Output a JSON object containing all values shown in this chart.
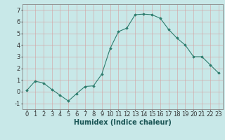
{
  "x": [
    0,
    1,
    2,
    3,
    4,
    5,
    6,
    7,
    8,
    9,
    10,
    11,
    12,
    13,
    14,
    15,
    16,
    17,
    18,
    19,
    20,
    21,
    22,
    23
  ],
  "y": [
    0.1,
    0.9,
    0.75,
    0.2,
    -0.3,
    -0.8,
    -0.15,
    0.45,
    0.5,
    1.5,
    3.7,
    5.15,
    5.45,
    6.6,
    6.65,
    6.6,
    6.3,
    5.35,
    4.6,
    4.0,
    3.0,
    3.0,
    2.3,
    1.6
  ],
  "xlabel": "Humidex (Indice chaleur)",
  "line_color": "#2e7d6e",
  "marker": "D",
  "marker_size": 1.8,
  "bg_color": "#c8e8e8",
  "grid_color": "#b0c8c8",
  "ylim": [
    -1.5,
    7.5
  ],
  "xlim": [
    -0.5,
    23.5
  ],
  "yticks": [
    -1,
    0,
    1,
    2,
    3,
    4,
    5,
    6,
    7
  ],
  "xticks": [
    0,
    1,
    2,
    3,
    4,
    5,
    6,
    7,
    8,
    9,
    10,
    11,
    12,
    13,
    14,
    15,
    16,
    17,
    18,
    19,
    20,
    21,
    22,
    23
  ],
  "xlabel_fontsize": 7,
  "tick_fontsize": 6
}
